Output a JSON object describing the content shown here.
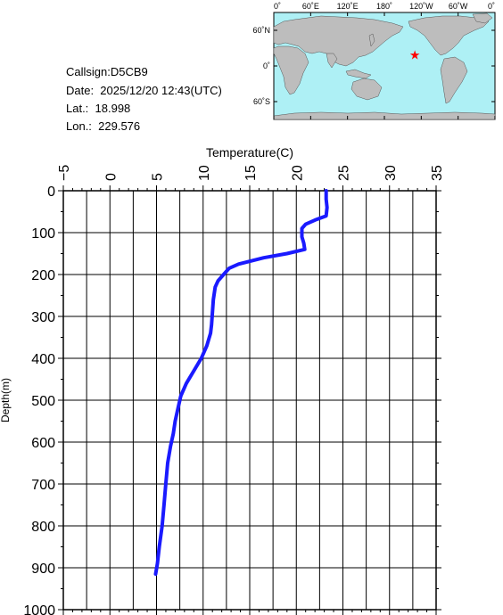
{
  "info": {
    "callsign": "Callsign:D5CB9",
    "date": "Date:  2025/12/20 12:43(UTC)",
    "lat": "Lat.:  18.998",
    "lon": "Lon.:  229.576"
  },
  "map": {
    "lon_ticks": [
      "0˚",
      "60˚E",
      "120˚E",
      "180˚",
      "120˚W",
      "60˚W",
      "0˚"
    ],
    "lat_ticks": [
      "60˚N",
      "0˚",
      "60˚S"
    ],
    "station": {
      "lat": 18.998,
      "lon": 229.576
    },
    "colors": {
      "ocean": "#aef0f5",
      "land": "#bdbdbd",
      "marker": "#ff0000"
    }
  },
  "chart_data": {
    "type": "line",
    "xlabel": "Temperature(C)",
    "ylabel": "Depth(m)",
    "xlim": [
      -5,
      35
    ],
    "ylim": [
      0,
      1000
    ],
    "y_inverted": true,
    "x_ticks": [
      -5,
      0,
      5,
      10,
      15,
      20,
      25,
      30,
      35
    ],
    "y_ticks": [
      0,
      100,
      200,
      300,
      400,
      500,
      600,
      700,
      800,
      900,
      1000
    ],
    "grid": true,
    "color": "#1a1aff",
    "series": [
      {
        "x": [
          23.2,
          23.2,
          23.3,
          23.2,
          22.0,
          21.0,
          20.6,
          20.6,
          20.8,
          20.9,
          19.0,
          16.5,
          13.8,
          12.8,
          12.2,
          11.6,
          11.3,
          11.1,
          11.0,
          10.9,
          10.8,
          10.4,
          9.8,
          9.0,
          8.2,
          7.6,
          7.3,
          7.0,
          6.8,
          6.5,
          6.2,
          6.0,
          5.8,
          5.6,
          5.3,
          5.1,
          4.9
        ],
        "y": [
          0,
          20,
          40,
          60,
          70,
          80,
          90,
          110,
          125,
          140,
          150,
          160,
          175,
          185,
          200,
          215,
          230,
          260,
          290,
          320,
          340,
          370,
          400,
          430,
          460,
          490,
          520,
          550,
          580,
          610,
          650,
          700,
          750,
          800,
          850,
          890,
          915
        ]
      }
    ]
  }
}
